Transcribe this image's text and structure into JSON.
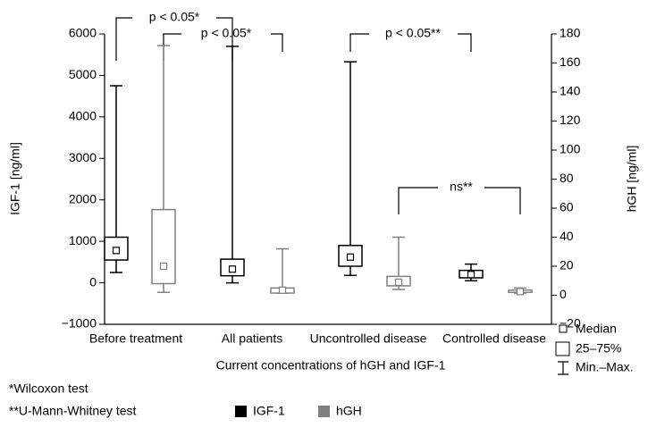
{
  "chart_data": {
    "type": "box",
    "x_label": "Current concentrations of hGH and IGF-1",
    "y_label": "IGF-1 [ng/ml]",
    "y2_label": "hGH [ng/ml]",
    "categories": [
      "Before treatment",
      "All patients",
      "Uncontrolled disease",
      "Controlled disease"
    ],
    "series": [
      {
        "name": "IGF-1",
        "color": "#000000",
        "axis": "y",
        "values": [
          {
            "min": 250,
            "q1": 550,
            "median": 780,
            "q3": 1100,
            "max": 4750
          },
          {
            "min": 0,
            "q1": 170,
            "median": 330,
            "q3": 570,
            "max": 5700
          },
          {
            "min": 180,
            "q1": 400,
            "median": 620,
            "q3": 900,
            "max": 5330
          },
          {
            "min": 50,
            "q1": 120,
            "median": 200,
            "q3": 300,
            "max": 450
          }
        ]
      },
      {
        "name": "hGH",
        "color": "#808080",
        "axis": "y2",
        "values": [
          {
            "min": 2,
            "q1": 8,
            "median": 20,
            "q3": 59,
            "max": 172
          },
          {
            "min": 1.5,
            "q1": 1.5,
            "median": 3.5,
            "q3": 5,
            "max": 32
          },
          {
            "min": 4,
            "q1": 6.5,
            "median": 9,
            "q3": 13,
            "max": 40
          },
          {
            "min": 1.5,
            "q1": 2,
            "median": 2.5,
            "q3": 3.5,
            "max": 5
          }
        ]
      }
    ],
    "ylim": [
      -1000,
      6000
    ],
    "yticks": [
      {
        "value": -1000,
        "label": "−1000"
      },
      0,
      1000,
      2000,
      3000,
      4000,
      5000,
      6000
    ],
    "y2lim": [
      -20,
      180
    ],
    "y2ticks": [
      {
        "value": -20,
        "label": "−20"
      },
      0,
      20,
      40,
      60,
      80,
      100,
      120,
      140,
      160,
      180
    ],
    "annotations": [
      "p < 0.05*",
      "p < 0.05*",
      "p < 0.05**",
      "ns**"
    ],
    "box_legend": [
      "Median",
      "25–75%",
      "Min.–Max."
    ],
    "footnotes": [
      "*Wilcoxon test",
      "**U-Mann-Whitney test"
    ]
  }
}
